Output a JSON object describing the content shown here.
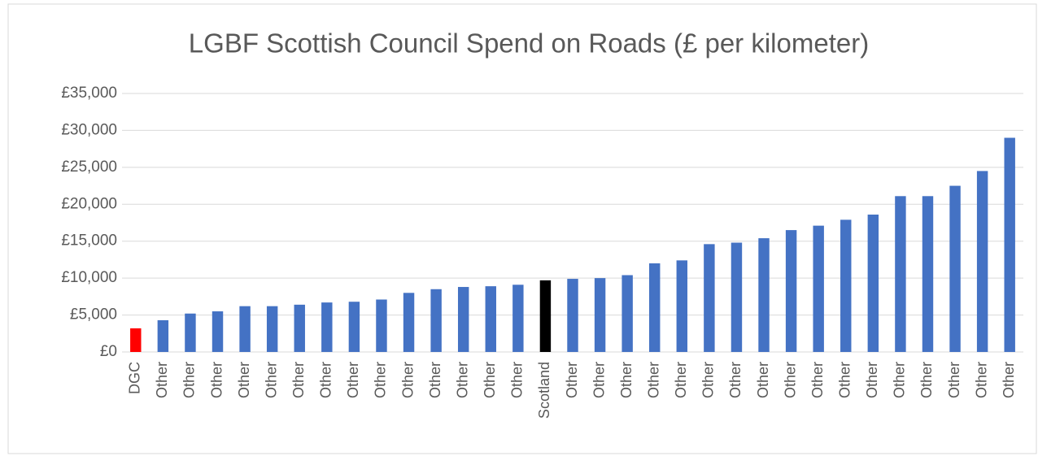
{
  "chart_data": {
    "type": "bar",
    "title": "LGBF Scottish Council Spend on Roads (£ per kilometer)",
    "categories": [
      "DGC",
      "Other",
      "Other",
      "Other",
      "Other",
      "Other",
      "Other",
      "Other",
      "Other",
      "Other",
      "Other",
      "Other",
      "Other",
      "Other",
      "Other",
      "Scotland",
      "Other",
      "Other",
      "Other",
      "Other",
      "Other",
      "Other",
      "Other",
      "Other",
      "Other",
      "Other",
      "Other",
      "Other",
      "Other",
      "Other",
      "Other",
      "Other",
      "Other"
    ],
    "values": [
      3200,
      4300,
      5200,
      5500,
      6200,
      6200,
      6400,
      6700,
      6800,
      7100,
      8000,
      8500,
      8800,
      8900,
      9100,
      9700,
      9900,
      10000,
      10400,
      12000,
      12400,
      14600,
      14800,
      15400,
      16500,
      17100,
      17900,
      18600,
      21100,
      21100,
      22500,
      24500,
      29000
    ],
    "colors": [
      "#ff0000",
      "#4472c4",
      "#4472c4",
      "#4472c4",
      "#4472c4",
      "#4472c4",
      "#4472c4",
      "#4472c4",
      "#4472c4",
      "#4472c4",
      "#4472c4",
      "#4472c4",
      "#4472c4",
      "#4472c4",
      "#4472c4",
      "#000000",
      "#4472c4",
      "#4472c4",
      "#4472c4",
      "#4472c4",
      "#4472c4",
      "#4472c4",
      "#4472c4",
      "#4472c4",
      "#4472c4",
      "#4472c4",
      "#4472c4",
      "#4472c4",
      "#4472c4",
      "#4472c4",
      "#4472c4",
      "#4472c4",
      "#4472c4"
    ],
    "ylim": [
      0,
      35000
    ],
    "yticks": [
      {
        "value": 0,
        "label": "£0"
      },
      {
        "value": 5000,
        "label": "£5,000"
      },
      {
        "value": 10000,
        "label": "£10,000"
      },
      {
        "value": 15000,
        "label": "£15,000"
      },
      {
        "value": 20000,
        "label": "£20,000"
      },
      {
        "value": 25000,
        "label": "£25,000"
      },
      {
        "value": 30000,
        "label": "£30,000"
      },
      {
        "value": 35000,
        "label": "£35,000"
      }
    ],
    "grid": true
  }
}
